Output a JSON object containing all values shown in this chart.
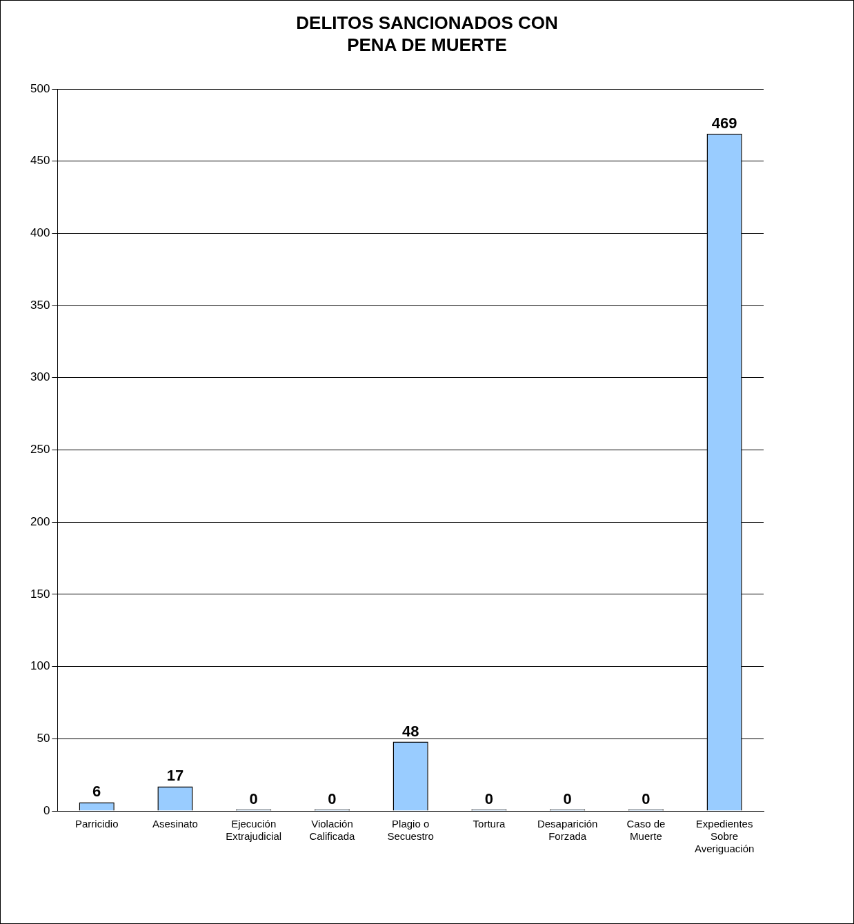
{
  "chart_data": {
    "type": "bar",
    "title": "DELITOS SANCIONADOS CON PENA DE MUERTE",
    "categories": [
      "Parricidio",
      "Asesinato",
      "Ejecución Extrajudicial",
      "Violación Calificada",
      "Plagio o Secuestro",
      "Tortura",
      "Desaparición Forzada",
      "Caso de Muerte",
      "Expedientes Sobre Averiguación"
    ],
    "values": [
      6,
      17,
      0,
      0,
      48,
      0,
      0,
      0,
      469
    ],
    "color": "#99ccff",
    "ylim": [
      0,
      500
    ],
    "yticks": [
      0,
      50,
      100,
      150,
      200,
      250,
      300,
      350,
      400,
      450,
      500
    ],
    "grid": "y",
    "data_labels": true
  }
}
